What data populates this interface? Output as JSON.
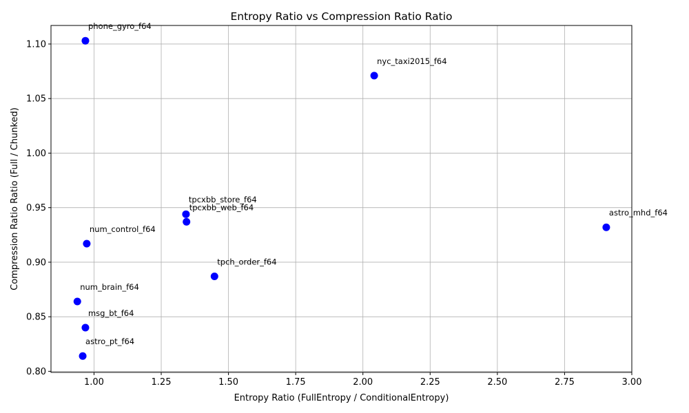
{
  "chart_data": {
    "type": "scatter",
    "title": "Entropy Ratio vs Compression Ratio Ratio",
    "xlabel": "Entropy Ratio (FullEntropy / ConditionalEntropy)",
    "ylabel": "Compression Ratio Ratio (Full / Chunked)",
    "xlim": [
      0.84,
      3.0
    ],
    "ylim": [
      0.799,
      1.117
    ],
    "xticks": [
      1.0,
      1.25,
      1.5,
      1.75,
      2.0,
      2.25,
      2.5,
      2.75,
      3.0
    ],
    "xtick_labels": [
      "1.00",
      "1.25",
      "1.50",
      "1.75",
      "2.00",
      "2.25",
      "2.50",
      "2.75",
      "3.00"
    ],
    "yticks": [
      0.8,
      0.85,
      0.9,
      0.95,
      1.0,
      1.05,
      1.1
    ],
    "ytick_labels": [
      "0.80",
      "0.85",
      "0.90",
      "0.95",
      "1.00",
      "1.05",
      "1.10"
    ],
    "grid": true,
    "marker_color": "#0000ff",
    "points": [
      {
        "label": "phone_gyro_f64",
        "x": 0.968,
        "y": 1.103
      },
      {
        "label": "nyc_taxi2015_f64",
        "x": 2.042,
        "y": 1.071
      },
      {
        "label": "tpcxbb_store_f64",
        "x": 1.342,
        "y": 0.944
      },
      {
        "label": "tpcxbb_web_f64",
        "x": 1.344,
        "y": 0.937
      },
      {
        "label": "astro_mhd_f64",
        "x": 2.905,
        "y": 0.932
      },
      {
        "label": "num_control_f64",
        "x": 0.973,
        "y": 0.917
      },
      {
        "label": "tpch_order_f64",
        "x": 1.448,
        "y": 0.887
      },
      {
        "label": "num_brain_f64",
        "x": 0.938,
        "y": 0.864
      },
      {
        "label": "msg_bt_f64",
        "x": 0.968,
        "y": 0.84
      },
      {
        "label": "astro_pt_f64",
        "x": 0.958,
        "y": 0.814
      }
    ]
  }
}
